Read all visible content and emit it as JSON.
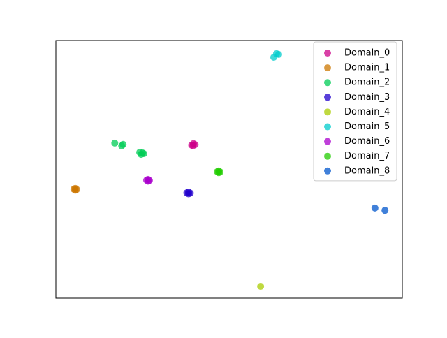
{
  "chart_data": {
    "type": "scatter",
    "legend": "upper right",
    "grid": false,
    "xlim": [
      0,
      100
    ],
    "ylim": [
      0,
      100
    ],
    "series": [
      {
        "name": "Domain_0",
        "color": "#cc0088",
        "x": [
          39.2,
          39.7,
          40.2,
          39.6
        ],
        "values": [
          59.4,
          60.0,
          59.6,
          59.2
        ]
      },
      {
        "name": "Domain_1",
        "color": "#cc7700",
        "x": [
          5.2,
          5.6,
          6.0,
          5.6
        ],
        "values": [
          42.3,
          42.6,
          42.2,
          41.9
        ]
      },
      {
        "name": "Domain_2",
        "color": "#00cc55",
        "x": [
          17.0,
          19.0,
          19.4,
          24.2,
          25.0,
          25.4,
          24.6
        ],
        "values": [
          60.2,
          59.1,
          59.7,
          56.6,
          56.4,
          56.1,
          55.8
        ]
      },
      {
        "name": "Domain_3",
        "color": "#2200cc",
        "x": [
          37.8,
          38.3,
          38.8,
          38.3
        ],
        "values": [
          40.9,
          41.2,
          40.8,
          40.5
        ]
      },
      {
        "name": "Domain_4",
        "color": "#aacc00",
        "x": [
          59.1
        ],
        "values": [
          4.6
        ]
      },
      {
        "name": "Domain_5",
        "color": "#00cccc",
        "x": [
          62.9,
          63.7,
          64.3
        ],
        "values": [
          93.5,
          94.9,
          94.6
        ]
      },
      {
        "name": "Domain_6",
        "color": "#aa00cc",
        "x": [
          26.2,
          26.6,
          27.0,
          26.6
        ],
        "values": [
          45.8,
          46.1,
          45.7,
          45.4
        ]
      },
      {
        "name": "Domain_7",
        "color": "#22cc00",
        "x": [
          46.6,
          47.0,
          47.4,
          47.0
        ],
        "values": [
          49.1,
          49.4,
          49.0,
          48.7
        ]
      },
      {
        "name": "Domain_8",
        "color": "#0055cc",
        "x": [
          92.1,
          95.0
        ],
        "values": [
          35.0,
          34.1
        ]
      }
    ]
  }
}
